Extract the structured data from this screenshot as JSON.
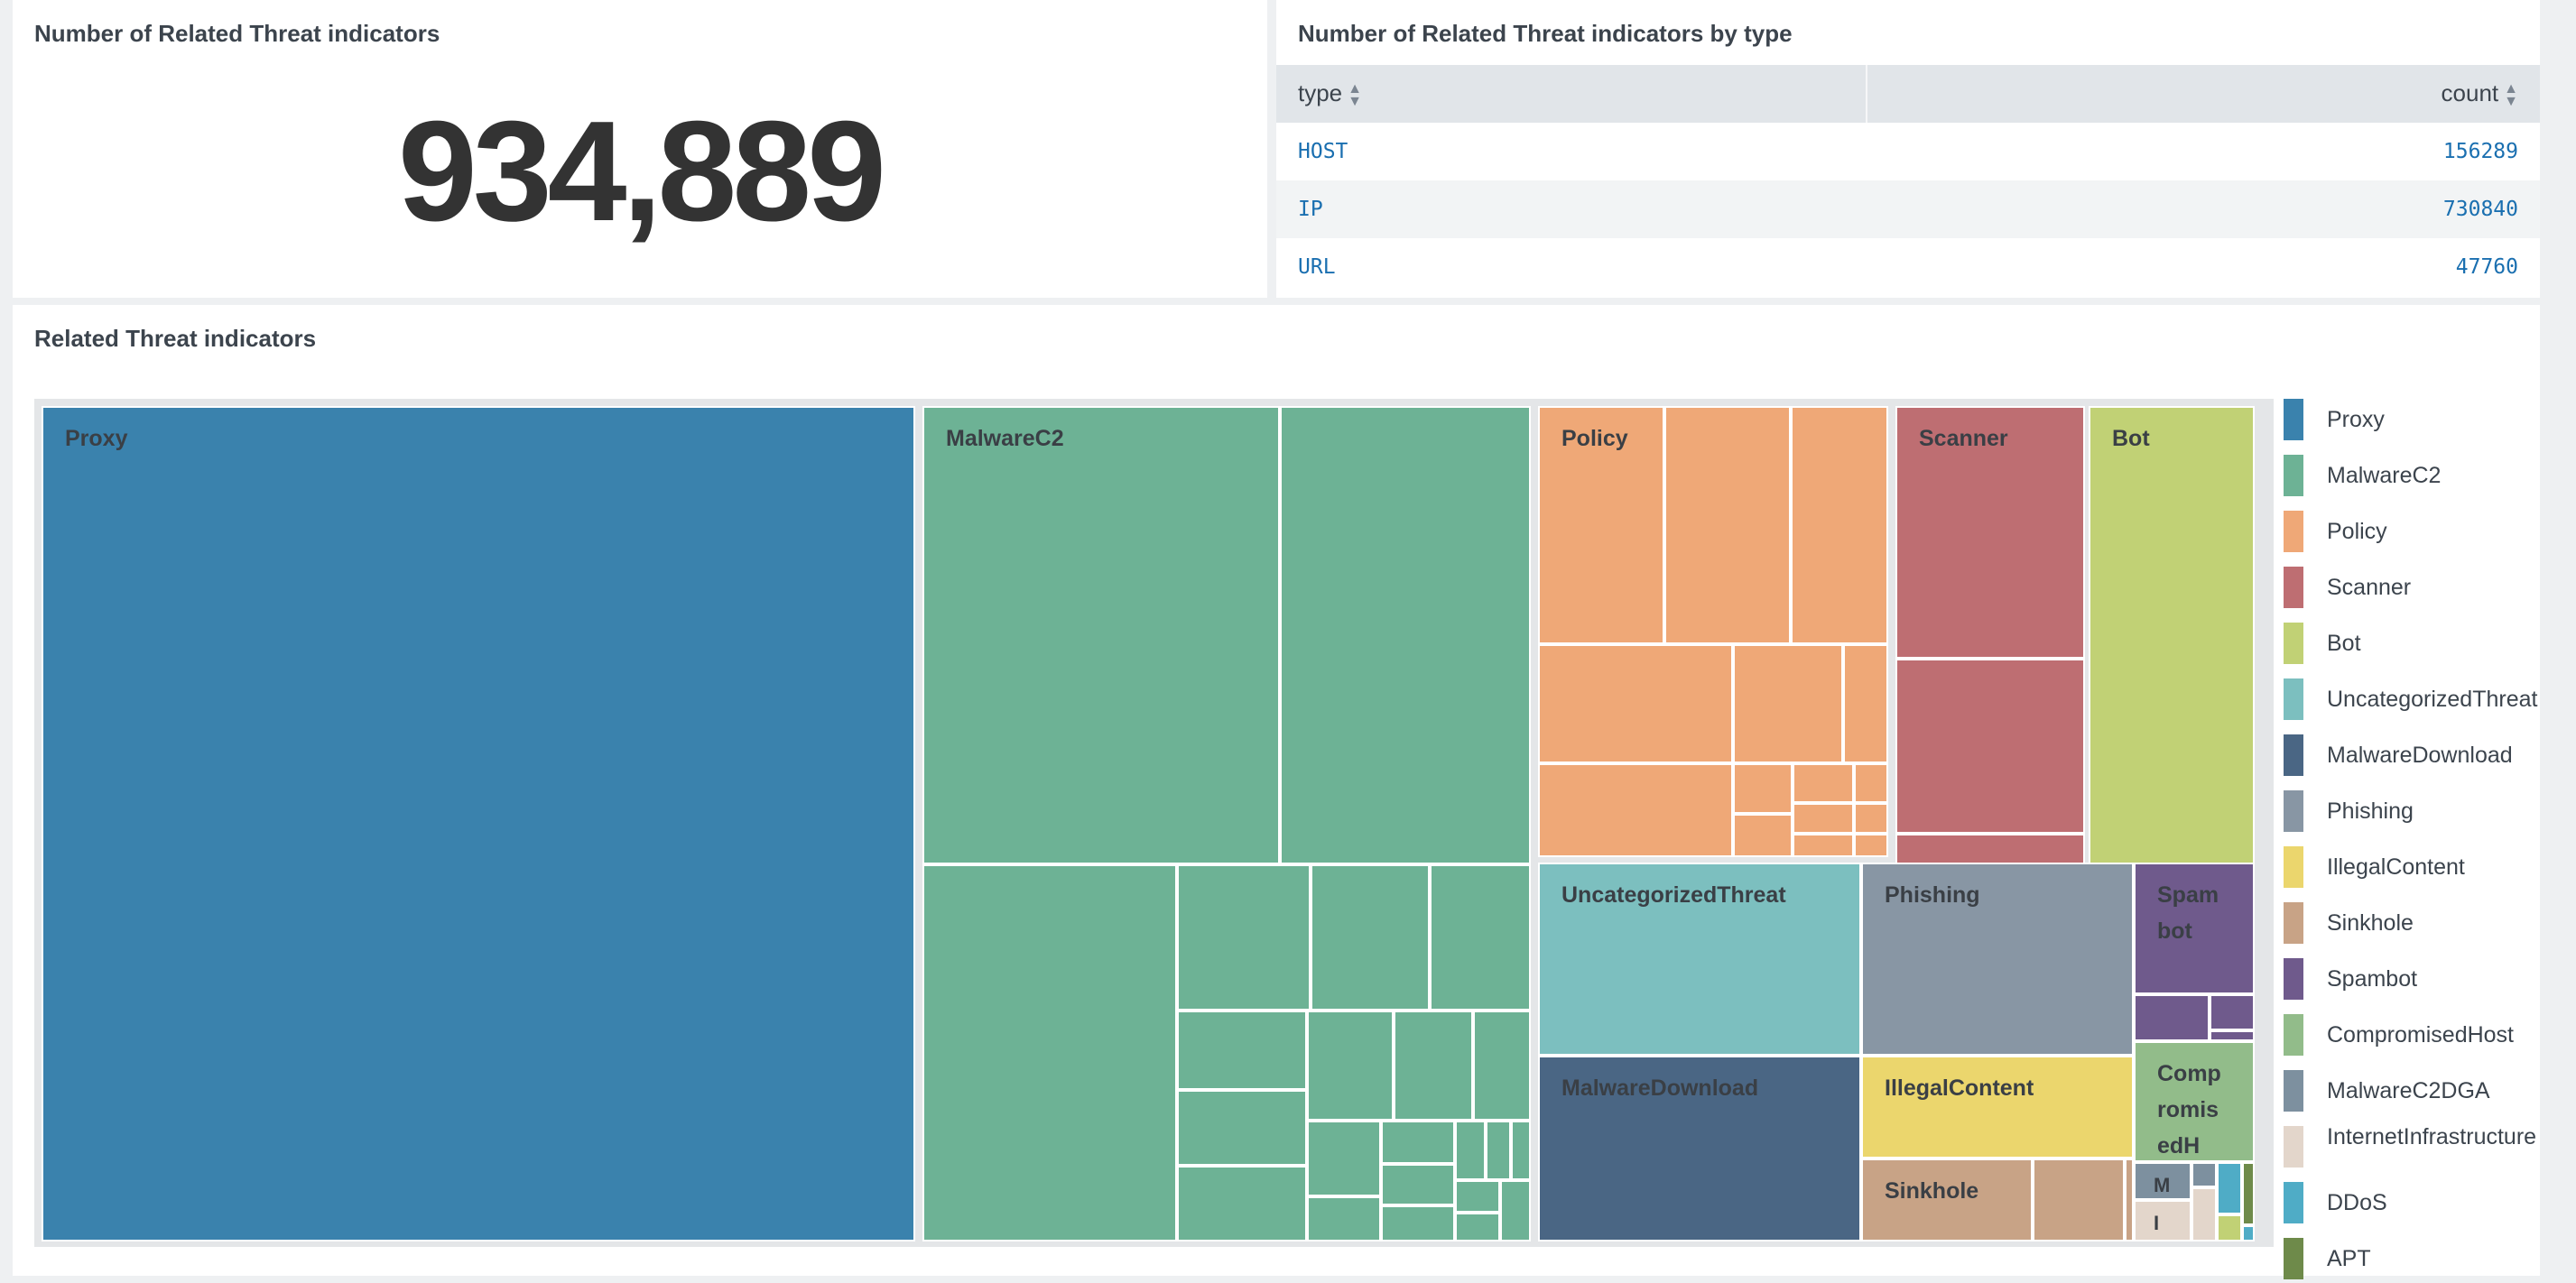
{
  "panels": {
    "count_title": "Number of Related Threat indicators",
    "count_value": "934,889",
    "by_type_title": "Number of Related Threat indicators by type",
    "treemap_title": "Related Threat indicators"
  },
  "table": {
    "columns": [
      "type",
      "count"
    ],
    "rows": [
      {
        "type": "HOST",
        "count": "156289"
      },
      {
        "type": "IP",
        "count": "730840"
      },
      {
        "type": "URL",
        "count": "47760"
      }
    ]
  },
  "colors": {
    "Proxy": "#3a82ad",
    "MalwareC2": "#6db295",
    "Policy": "#efa877",
    "Scanner": "#be6e72",
    "Bot": "#c1d175",
    "UncategorizedThreat": "#7cbfbf",
    "MalwareDownload": "#4a6684",
    "Phishing": "#8896a4",
    "IllegalContent": "#ebd66d",
    "Sinkhole": "#c8a386",
    "Spambot": "#6f5a8c",
    "CompromisedHost": "#92bc8a",
    "MalwareC2DGA": "#7d909f",
    "InternetInfrastructure": "#e3d6cb",
    "DDoS": "#4facc6",
    "APT": "#6e8a4a"
  },
  "treemap": {
    "labels": {
      "proxy": "Proxy",
      "malwarec2": "MalwareC2",
      "policy": "Policy",
      "scanner": "Scanner",
      "bot": "Bot",
      "uncategorized": "UncategorizedThreat",
      "phishing": "Phishing",
      "spambot": "Spambot",
      "malwaredownload": "MalwareDownload",
      "illegalcontent": "IllegalContent",
      "compromised": "CompromisedH",
      "sinkhole": "Sinkhole",
      "small_m": "M",
      "small_l": "I"
    }
  },
  "legend": [
    "Proxy",
    "MalwareC2",
    "Policy",
    "Scanner",
    "Bot",
    "UncategorizedThreat",
    "MalwareDownload",
    "Phishing",
    "IllegalContent",
    "Sinkhole",
    "Spambot",
    "CompromisedHost",
    "MalwareC2DGA",
    "InternetInfrastructure",
    "DDoS",
    "APT"
  ]
}
